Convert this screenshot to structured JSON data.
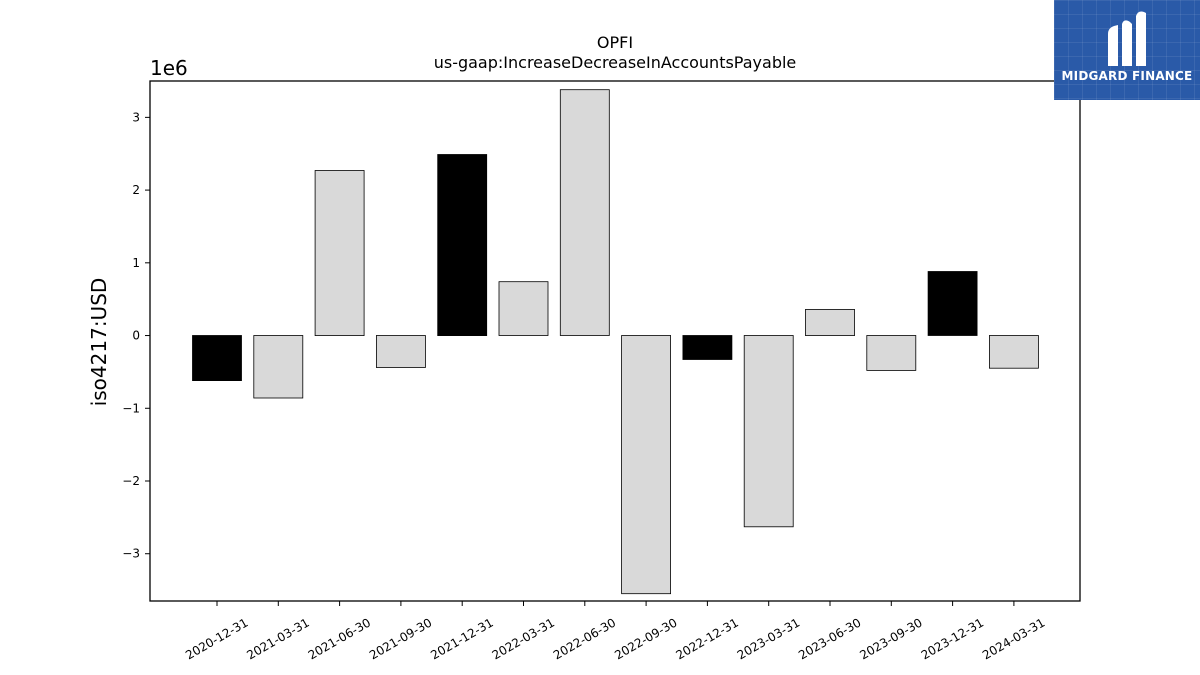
{
  "logo": {
    "text": "MIDGARD FINANCE",
    "icon": "midgard-logo-icon",
    "bg_color": "#2a5aa8"
  },
  "chart_data": {
    "type": "bar",
    "title": "OPFI",
    "subtitle": "us-gaap:IncreaseDecreaseInAccountsPayable",
    "ylabel": "iso4217:USD",
    "xlabel": "",
    "y_offset_label": "1e6",
    "ylim": [
      -3.65,
      3.5
    ],
    "yticks": [
      -3,
      -2,
      -1,
      0,
      1,
      2,
      3
    ],
    "ytick_labels": [
      "−3",
      "−2",
      "−1",
      "0",
      "1",
      "2",
      "3"
    ],
    "grid": false,
    "categories": [
      "2020-12-31",
      "2021-03-31",
      "2021-06-30",
      "2021-09-30",
      "2021-12-31",
      "2022-03-31",
      "2022-06-30",
      "2022-09-30",
      "2022-12-31",
      "2023-03-31",
      "2023-06-30",
      "2023-09-30",
      "2023-12-31",
      "2024-03-31"
    ],
    "values": [
      -0.62,
      -0.86,
      2.27,
      -0.44,
      2.49,
      0.74,
      3.38,
      -3.55,
      -0.33,
      -2.63,
      0.36,
      -0.48,
      0.88,
      -0.45
    ],
    "colors": [
      "#000000",
      "#d9d9d9",
      "#d9d9d9",
      "#d9d9d9",
      "#000000",
      "#d9d9d9",
      "#d9d9d9",
      "#d9d9d9",
      "#000000",
      "#d9d9d9",
      "#d9d9d9",
      "#d9d9d9",
      "#000000",
      "#d9d9d9"
    ]
  }
}
